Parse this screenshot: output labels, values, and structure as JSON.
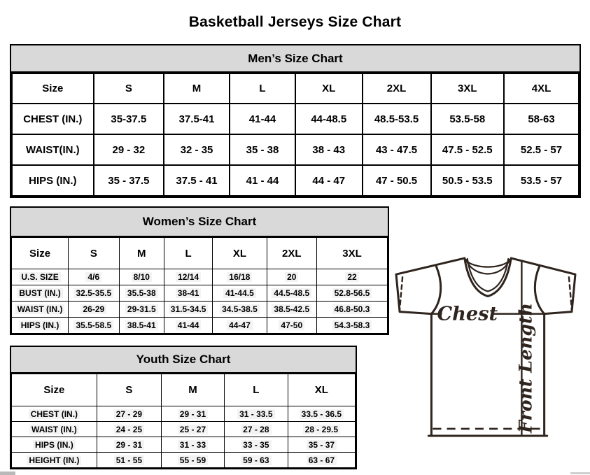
{
  "page": {
    "title": "Basketball Jerseys Size Chart"
  },
  "tables": [
    {
      "id": "mens",
      "title": "Men’s Size Chart",
      "header": [
        "Size",
        "S",
        "M",
        "L",
        "XL",
        "2XL",
        "3XL",
        "4XL"
      ],
      "rows": [
        {
          "label": "CHEST (IN.)",
          "values": [
            "35-37.5",
            "37.5-41",
            "41-44",
            "44-48.5",
            "48.5-53.5",
            "53.5-58",
            "58-63"
          ]
        },
        {
          "label": "WAIST(IN.)",
          "values": [
            "29 - 32",
            "32 - 35",
            "35 - 38",
            "38 - 43",
            "43 - 47.5",
            "47.5 - 52.5",
            "52.5 - 57"
          ]
        },
        {
          "label": "HIPS (IN.)",
          "values": [
            "35 - 37.5",
            "37.5 - 41",
            "41 - 44",
            "44 - 47",
            "47 - 50.5",
            "50.5 - 53.5",
            "53.5 - 57"
          ]
        }
      ]
    },
    {
      "id": "womens",
      "title": "Women’s Size Chart",
      "header": [
        "Size",
        "S",
        "M",
        "L",
        "XL",
        "2XL",
        "3XL"
      ],
      "rows": [
        {
          "label": "U.S. SIZE",
          "values": [
            "4/6",
            "8/10",
            "12/14",
            "16/18",
            "20",
            "22"
          ]
        },
        {
          "label": "BUST (IN.)",
          "values": [
            "32.5-35.5",
            "35.5-38",
            "38-41",
            "41-44.5",
            "44.5-48.5",
            "52.8-56.5"
          ]
        },
        {
          "label": "WAIST (IN.)",
          "values": [
            "26-29",
            "29-31.5",
            "31.5-34.5",
            "34.5-38.5",
            "38.5-42.5",
            "46.8-50.3"
          ]
        },
        {
          "label": "HIPS (IN.)",
          "values": [
            "35.5-58.5",
            "38.5-41",
            "41-44",
            "44-47",
            "47-50",
            "54.3-58.3"
          ]
        }
      ]
    },
    {
      "id": "youth",
      "title": "Youth Size Chart",
      "header": [
        "Size",
        "S",
        "M",
        "L",
        "XL"
      ],
      "rows": [
        {
          "label": "CHEST (IN.)",
          "values": [
            "27 - 29",
            "29 - 31",
            "31 - 33.5",
            "33.5 - 36.5"
          ]
        },
        {
          "label": "WAIST (IN.)",
          "values": [
            "24 - 25",
            "25 - 27",
            "27 - 28",
            "28 - 29.5"
          ]
        },
        {
          "label": "HIPS (IN.)",
          "values": [
            "29 - 31",
            "31 - 33",
            "33 - 35",
            "35 - 37"
          ]
        },
        {
          "label": "HEIGHT (IN.)",
          "values": [
            "51 - 55",
            "55 - 59",
            "59 - 63",
            "63 - 67"
          ]
        }
      ]
    }
  ],
  "diagram": {
    "chest_label": "Chest",
    "front_length_label": "Front Length"
  },
  "colors": {
    "table_header_bg": "#d9d9d9",
    "table_border": "#000000",
    "diagram_stroke": "#2f241e",
    "background": "#ffffff"
  }
}
